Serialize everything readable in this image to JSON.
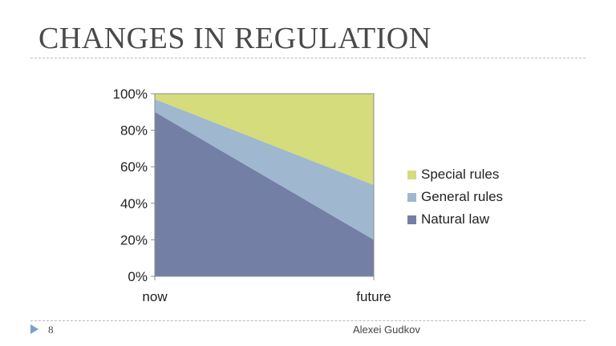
{
  "slide": {
    "title": "CHANGES IN REGULATION",
    "page_number": "8",
    "author": "Alexei Gudkov"
  },
  "icons": {
    "footer_bullet": "triangle-right-icon"
  },
  "colors": {
    "natural_law": "#737fa5",
    "general_rules": "#a0b7d0",
    "special_rules": "#d4dc7c",
    "footer_arrow": "#7b9fc8"
  },
  "chart_data": {
    "type": "area",
    "stacked": "percent",
    "categories": [
      "now",
      "future"
    ],
    "series": [
      {
        "name": "Natural law",
        "values": [
          90,
          20
        ],
        "color": "#737fa5"
      },
      {
        "name": "General rules",
        "values": [
          7,
          30
        ],
        "color": "#a0b7d0"
      },
      {
        "name": "Special rules",
        "values": [
          3,
          50
        ],
        "color": "#d4dc7c"
      }
    ],
    "ylim": [
      0,
      100
    ],
    "yticks": [
      "0%",
      "20%",
      "40%",
      "60%",
      "80%",
      "100%"
    ],
    "grid": false,
    "legend_position": "right"
  }
}
